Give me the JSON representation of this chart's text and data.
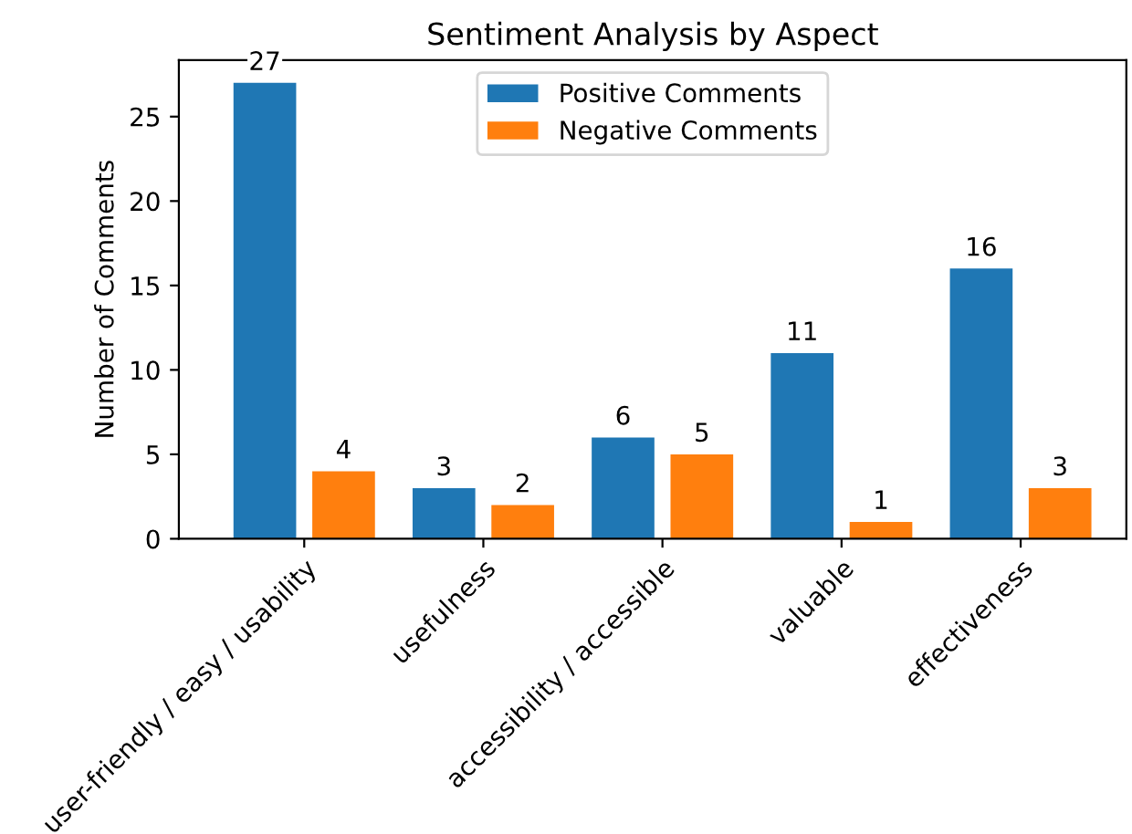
{
  "chart_data": {
    "type": "bar",
    "title": "Sentiment Analysis by Aspect",
    "ylabel": "Number of Comments",
    "categories": [
      "user-friendly / easy / usability",
      "usefulness",
      "accessibility / accessible",
      "valuable",
      "effectiveness"
    ],
    "series": [
      {
        "name": "Positive Comments",
        "color": "#1f77b4",
        "values": [
          27,
          3,
          6,
          11,
          16
        ]
      },
      {
        "name": "Negative Comments",
        "color": "#ff7f0e",
        "values": [
          4,
          2,
          5,
          1,
          3
        ]
      }
    ],
    "ylim": [
      0,
      28.35
    ],
    "yticks": [
      0,
      5,
      10,
      15,
      20,
      25
    ],
    "data_labels": true,
    "legend": "top",
    "grid": false
  }
}
